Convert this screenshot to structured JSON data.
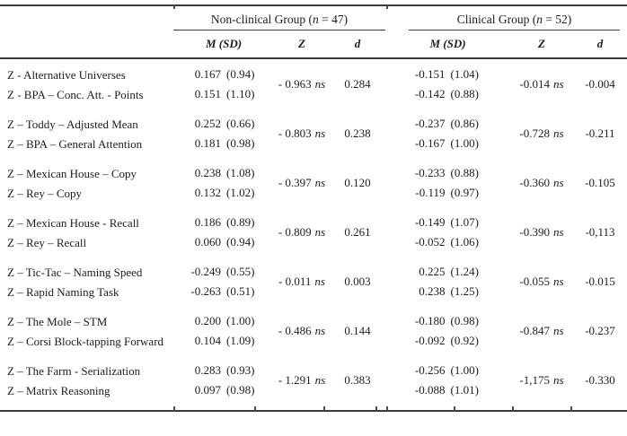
{
  "colors": {
    "text": "#1d1d1d",
    "rule": "#3a3a3a",
    "background": "#ffffff"
  },
  "header": {
    "groups": [
      {
        "prefix": "Non-clinical Group (",
        "n_symbol": "n",
        "suffix": " = 47)"
      },
      {
        "prefix": "Clinical Group (",
        "n_symbol": "n",
        "suffix": " = 52)"
      }
    ],
    "columns": {
      "m_sd": "M (SD)",
      "z": "Z",
      "d": "d"
    }
  },
  "table": {
    "groups": [
      {
        "rows": [
          {
            "label": "Z - Alternative Universes",
            "nc_m": "0.167",
            "nc_sd": "(0.94)",
            "cl_m": "-0.151",
            "cl_sd": "(1.04)"
          },
          {
            "label": "Z - BPA – Conc. Att. - Points",
            "nc_m": "0.151",
            "nc_sd": "(1.10)",
            "cl_m": "-0.142",
            "cl_sd": "(0.88)"
          }
        ],
        "nc_z": "- 0.963",
        "nc_z_sig": "ns",
        "nc_d": "0.284",
        "cl_z": "-0.014",
        "cl_z_sig": "ns",
        "cl_d": "-0.004"
      },
      {
        "rows": [
          {
            "label": "Z – Toddy – Adjusted Mean",
            "nc_m": "0.252",
            "nc_sd": "(0.66)",
            "cl_m": "-0.237",
            "cl_sd": "(0.86)"
          },
          {
            "label": "Z – BPA – General Attention",
            "nc_m": "0.181",
            "nc_sd": "(0.98)",
            "cl_m": "-0.167",
            "cl_sd": "(1.00)"
          }
        ],
        "nc_z": "- 0.803",
        "nc_z_sig": "ns",
        "nc_d": "0.238",
        "cl_z": "-0.728",
        "cl_z_sig": "ns",
        "cl_d": "-0.211"
      },
      {
        "rows": [
          {
            "label": "Z – Mexican House – Copy",
            "nc_m": "0.238",
            "nc_sd": "(1.08)",
            "cl_m": "-0.233",
            "cl_sd": "(0.88)"
          },
          {
            "label": "Z – Rey – Copy",
            "nc_m": "0.132",
            "nc_sd": "(1.02)",
            "cl_m": "-0.119",
            "cl_sd": "(0.97)"
          }
        ],
        "nc_z": "- 0.397",
        "nc_z_sig": "ns",
        "nc_d": "0.120",
        "cl_z": "-0.360",
        "cl_z_sig": "ns",
        "cl_d": "-0.105"
      },
      {
        "rows": [
          {
            "label": "Z – Mexican House - Recall",
            "nc_m": "0.186",
            "nc_sd": "(0.89)",
            "cl_m": "-0.149",
            "cl_sd": "(1.07)"
          },
          {
            "label": "Z – Rey – Recall",
            "nc_m": "0.060",
            "nc_sd": "(0.94)",
            "cl_m": "-0.052",
            "cl_sd": "(1.06)"
          }
        ],
        "nc_z": "- 0.809",
        "nc_z_sig": "ns",
        "nc_d": "0.261",
        "cl_z": "-0.390",
        "cl_z_sig": "ns",
        "cl_d": "-0,113"
      },
      {
        "rows": [
          {
            "label": "Z – Tic-Tac – Naming Speed",
            "nc_m": "-0.249",
            "nc_sd": "(0.55)",
            "cl_m": "0.225",
            "cl_sd": "(1.24)"
          },
          {
            "label": "Z – Rapid Naming Task",
            "nc_m": "-0.263",
            "nc_sd": "(0.51)",
            "cl_m": "0.238",
            "cl_sd": "(1.25)"
          }
        ],
        "nc_z": "- 0.011",
        "nc_z_sig": "ns",
        "nc_d": "0.003",
        "cl_z": "-0.055",
        "cl_z_sig": "ns",
        "cl_d": "-0.015"
      },
      {
        "rows": [
          {
            "label": "Z – The Mole – STM",
            "nc_m": "0.200",
            "nc_sd": "(1.00)",
            "cl_m": "-0.180",
            "cl_sd": "(0.98)"
          },
          {
            "label": "Z – Corsi Block-tapping Forward",
            "nc_m": "0.104",
            "nc_sd": "(1.09)",
            "cl_m": "-0.092",
            "cl_sd": "(0.92)"
          }
        ],
        "nc_z": "- 0.486",
        "nc_z_sig": "ns",
        "nc_d": "0.144",
        "cl_z": "-0.847",
        "cl_z_sig": "ns",
        "cl_d": "-0.237"
      },
      {
        "rows": [
          {
            "label": "Z – The Farm - Serialization",
            "nc_m": "0.283",
            "nc_sd": "(0.93)",
            "cl_m": "-0.256",
            "cl_sd": "(1.00)"
          },
          {
            "label": "Z – Matrix Reasoning",
            "nc_m": "0.097",
            "nc_sd": "(0.98)",
            "cl_m": "-0.088",
            "cl_sd": "(1.01)"
          }
        ],
        "nc_z": "- 1.291",
        "nc_z_sig": "ns",
        "nc_d": "0.383",
        "cl_z": "-1,175",
        "cl_z_sig": "ns",
        "cl_d": "-0.330"
      }
    ]
  }
}
